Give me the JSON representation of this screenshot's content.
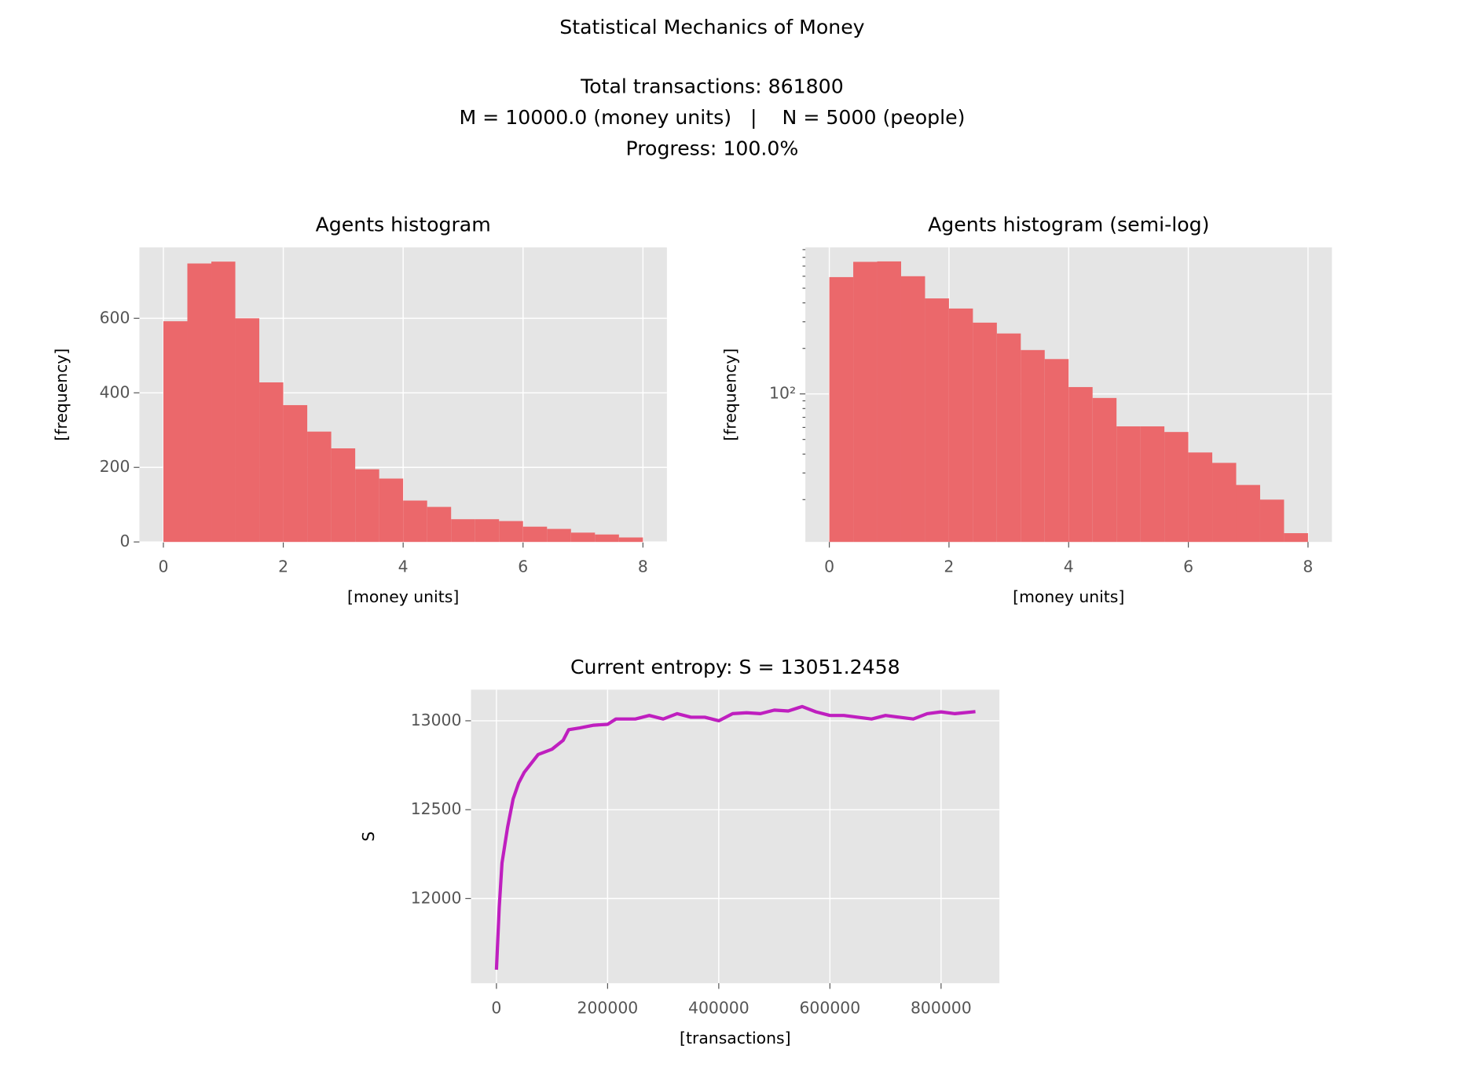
{
  "figure": {
    "title": "Statistical Mechanics of Money",
    "subtitle": [
      "Total transactions: 861800",
      "M = 10000.0 (money units)   |    N = 5000 (people)",
      "Progress: 100.0%"
    ]
  },
  "chart_data": [
    {
      "type": "histogram",
      "title": "Agents histogram",
      "xlabel": "[money units]",
      "ylabel": "[frequency]",
      "bins": [
        0,
        0.4,
        0.8,
        1.2,
        1.6,
        2,
        2.4,
        2.8,
        3.2,
        3.6,
        4,
        4.4,
        4.8,
        5.2,
        5.6,
        6,
        6.4,
        6.8,
        7.2,
        7.6,
        8
      ],
      "values": [
        592,
        747,
        752,
        600,
        428,
        367,
        296,
        251,
        195,
        170,
        111,
        94,
        61,
        61,
        56,
        41,
        35,
        25,
        20,
        12
      ],
      "color": "#eb686b",
      "xlim": [
        -0.4,
        8.4
      ],
      "ylim": [
        0,
        790
      ],
      "xticks": [
        0,
        2,
        4,
        6,
        8
      ],
      "yticks": [
        0,
        200,
        400,
        600
      ],
      "grid": true
    },
    {
      "type": "histogram",
      "title": "Agents histogram (semi-log)",
      "xlabel": "[money units]",
      "ylabel": "[frequency]",
      "bins": [
        0,
        0.4,
        0.8,
        1.2,
        1.6,
        2,
        2.4,
        2.8,
        3.2,
        3.6,
        4,
        4.4,
        4.8,
        5.2,
        5.6,
        6,
        6.4,
        6.8,
        7.2,
        7.6,
        8
      ],
      "values": [
        592,
        747,
        752,
        600,
        428,
        367,
        296,
        251,
        195,
        170,
        111,
        94,
        61,
        61,
        56,
        41,
        35,
        25,
        20,
        12
      ],
      "color": "#eb686b",
      "log_y": true,
      "xlim": [
        -0.4,
        8.4
      ],
      "ylim": [
        10.5,
        930
      ],
      "xticks": [
        0,
        2,
        4,
        6,
        8
      ],
      "yticks": [
        {
          "value": 100,
          "label": "10²"
        }
      ],
      "minor_yticks": [
        20,
        30,
        40,
        50,
        60,
        70,
        80,
        90,
        200,
        300,
        400,
        500,
        600,
        700,
        800,
        900
      ],
      "grid": true
    },
    {
      "type": "line",
      "title": "Current entropy: S = 13051.2458",
      "xlabel": "[transactions]",
      "ylabel": "S",
      "x": [
        0,
        5000,
        10000,
        20000,
        30000,
        40000,
        50000,
        60000,
        75000,
        100000,
        120000,
        130000,
        150000,
        175000,
        200000,
        215000,
        250000,
        275000,
        300000,
        325000,
        350000,
        375000,
        400000,
        425000,
        450000,
        475000,
        500000,
        525000,
        550000,
        575000,
        600000,
        625000,
        650000,
        675000,
        700000,
        725000,
        750000,
        775000,
        800000,
        825000,
        861800
      ],
      "values": [
        11600,
        11950,
        12200,
        12400,
        12560,
        12650,
        12710,
        12750,
        12810,
        12840,
        12890,
        12950,
        12960,
        12975,
        12980,
        13010,
        13010,
        13030,
        13010,
        13040,
        13020,
        13020,
        13000,
        13040,
        13045,
        13040,
        13060,
        13055,
        13080,
        13050,
        13030,
        13030,
        13020,
        13010,
        13030,
        13020,
        13010,
        13040,
        13050,
        13040,
        13051.2458
      ],
      "color": "#bf1fbf",
      "xlim": [
        -45800,
        905000
      ],
      "ylim": [
        11524,
        13175
      ],
      "xticks": [
        0,
        200000,
        400000,
        600000,
        800000
      ],
      "yticks": [
        12000,
        12500,
        13000
      ],
      "grid": true
    }
  ]
}
